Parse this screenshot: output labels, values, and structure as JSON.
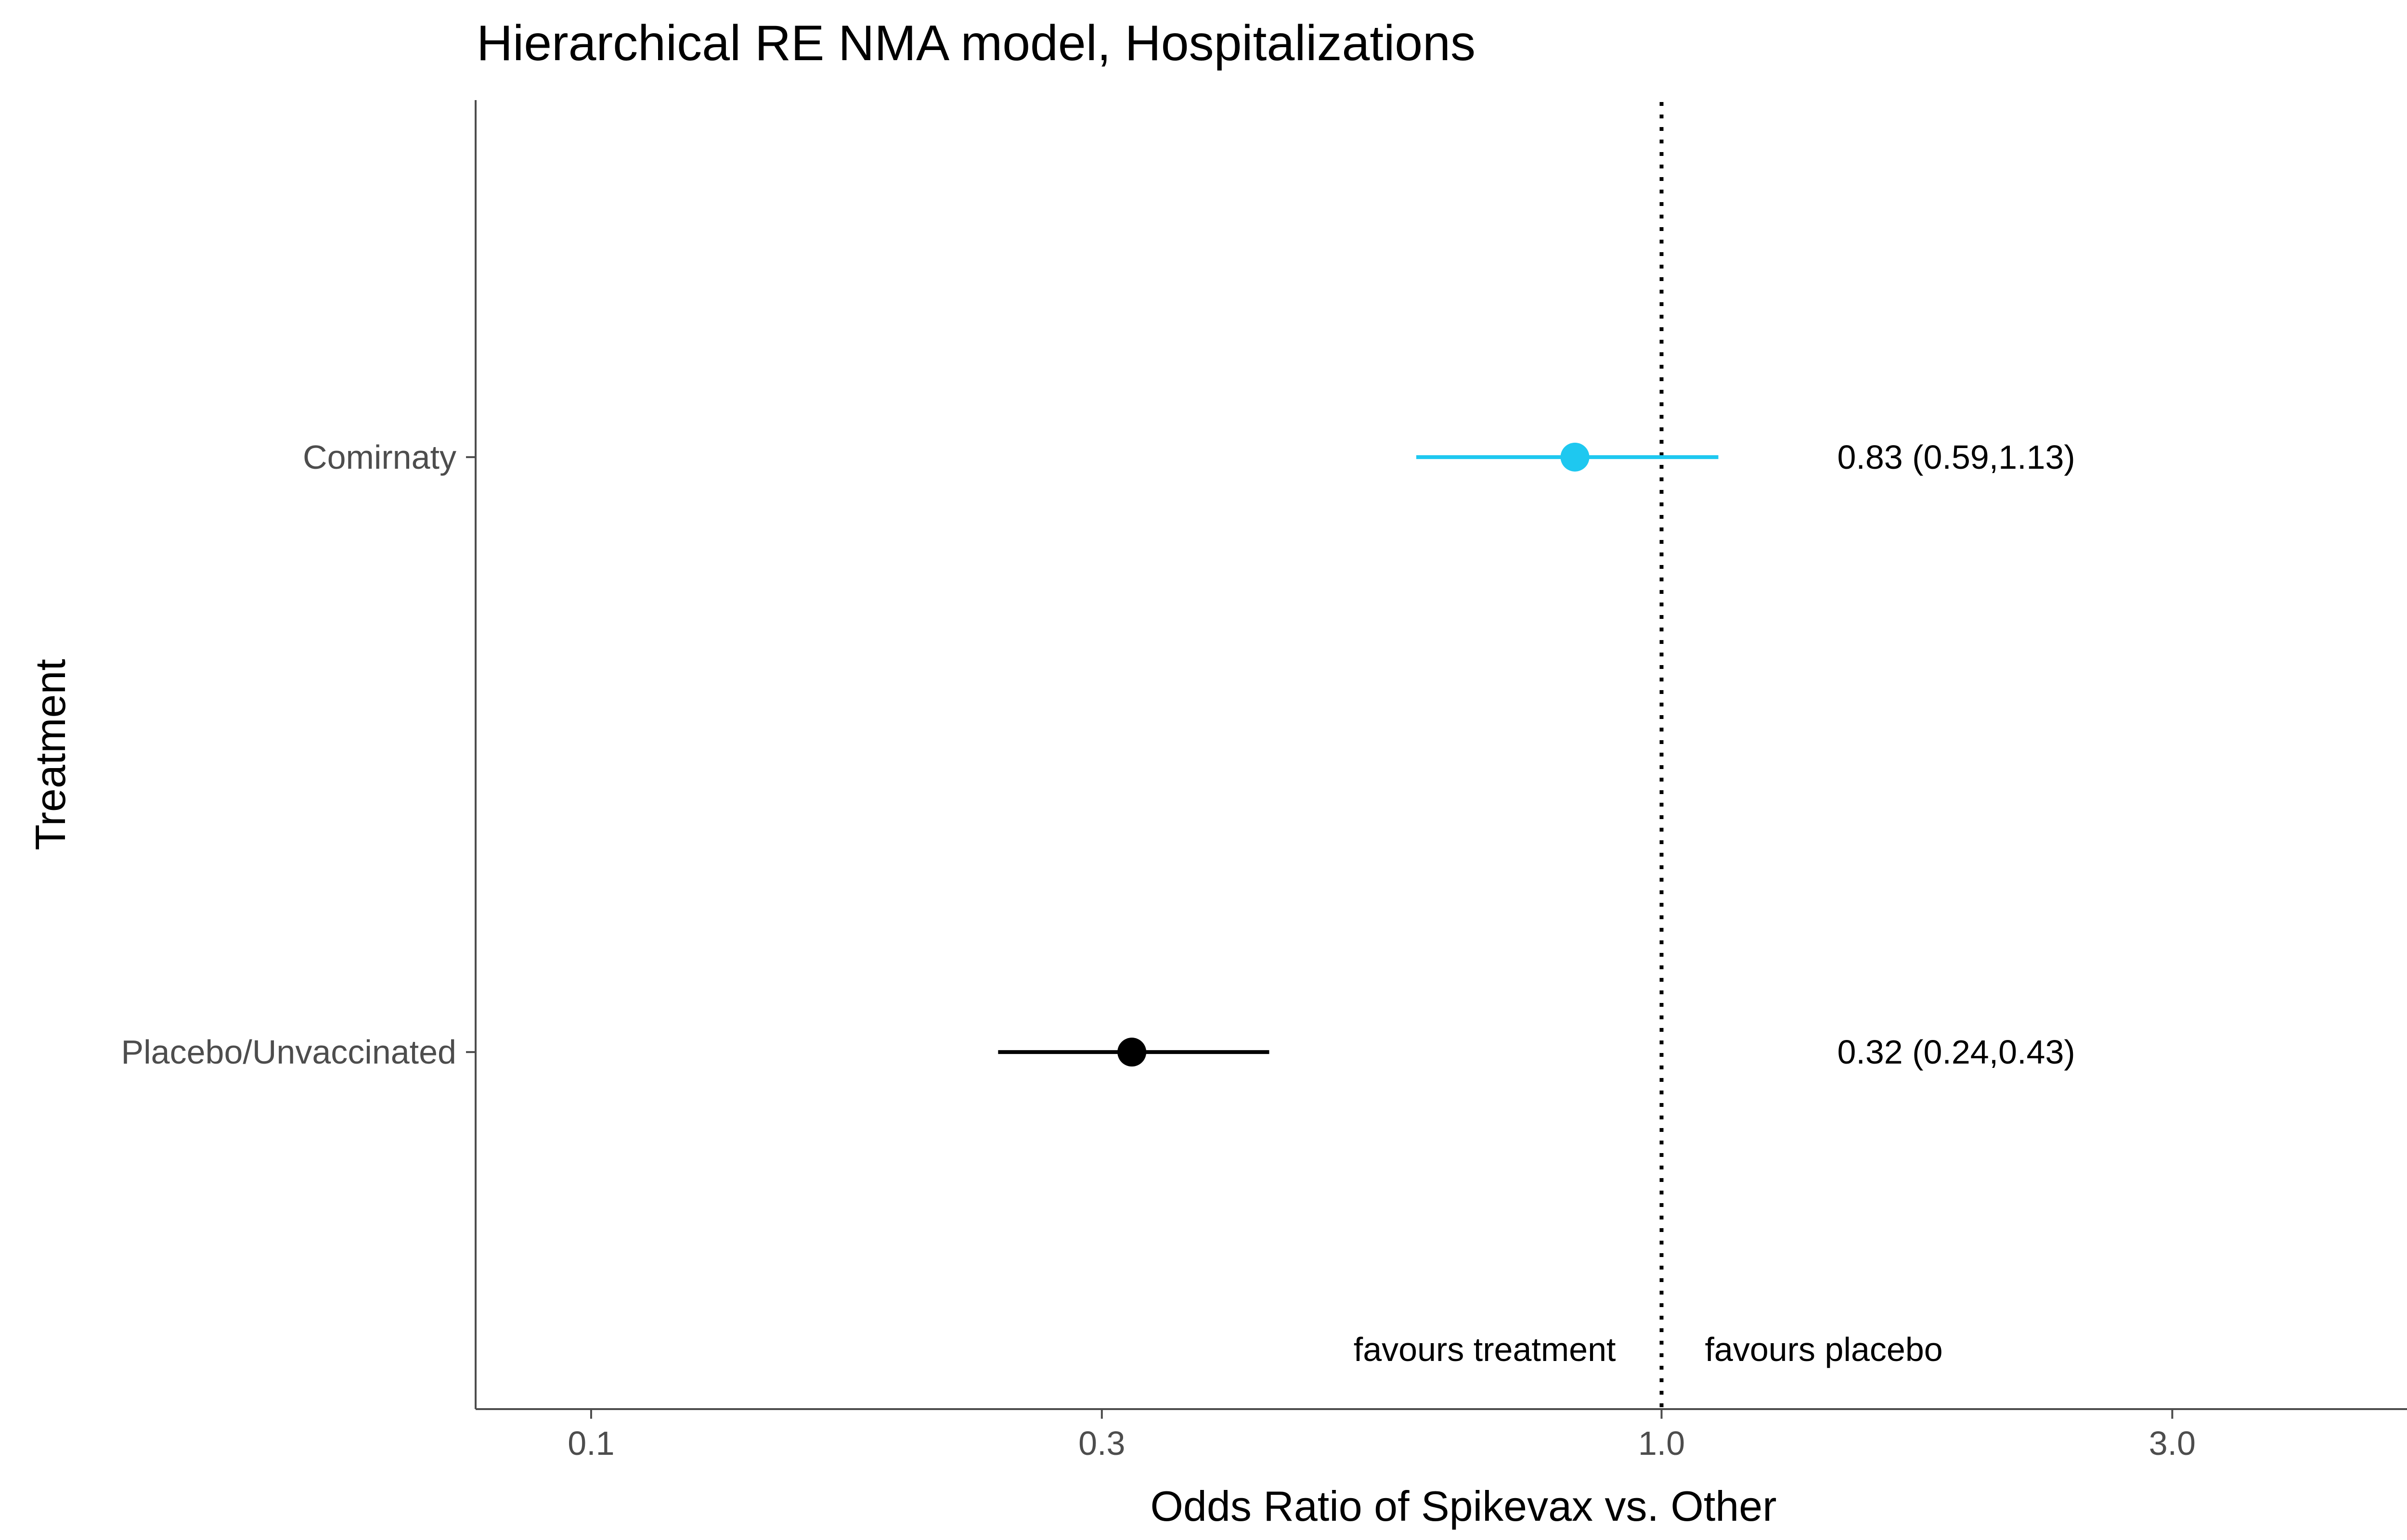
{
  "chart_data": {
    "type": "forest",
    "title": "Hierarchical RE NMA model, Hospitalizations",
    "xlabel": "Odds Ratio of Spikevax vs. Other",
    "ylabel": "Treatment",
    "x_scale": "log10",
    "xlim": [
      0.078,
      5.4
    ],
    "x_ticks": [
      0.1,
      0.3,
      1.0,
      3.0
    ],
    "x_tick_labels": [
      "0.1",
      "0.3",
      "1.0",
      "3.0"
    ],
    "reference_line": 1.0,
    "categories": [
      "Comirnaty",
      "Placebo/Unvaccinated"
    ],
    "series": [
      {
        "name": "Comirnaty",
        "estimate": 0.83,
        "lower": 0.59,
        "upper": 1.13,
        "label": "0.83 (0.59,1.13)",
        "color": "#1ec8f0"
      },
      {
        "name": "Placebo/Unvaccinated",
        "estimate": 0.32,
        "lower": 0.24,
        "upper": 0.43,
        "label": "0.32 (0.24,0.43)",
        "color": "#000000"
      }
    ],
    "annotations": {
      "left": "favours treatment",
      "right": "favours placebo"
    }
  }
}
